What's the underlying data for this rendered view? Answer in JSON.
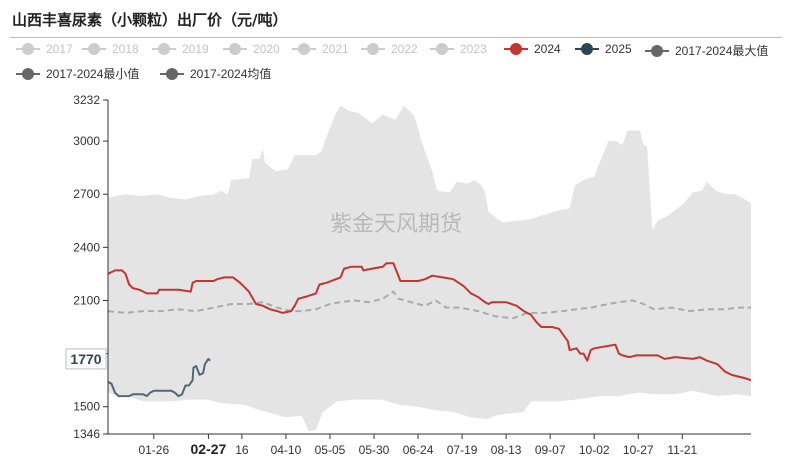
{
  "title": "山西丰喜尿素（小颗粒）出厂价（元/吨）",
  "watermark": "紫金天风期货",
  "legend": [
    {
      "label": "2017",
      "color": "#cccccc",
      "active": false
    },
    {
      "label": "2018",
      "color": "#cccccc",
      "active": false
    },
    {
      "label": "2019",
      "color": "#cccccc",
      "active": false
    },
    {
      "label": "2020",
      "color": "#cccccc",
      "active": false
    },
    {
      "label": "2021",
      "color": "#cccccc",
      "active": false
    },
    {
      "label": "2022",
      "color": "#cccccc",
      "active": false
    },
    {
      "label": "2023",
      "color": "#cccccc",
      "active": false
    },
    {
      "label": "2024",
      "color": "#c23531",
      "active": true
    },
    {
      "label": "2025",
      "color": "#2f4554",
      "active": true
    },
    {
      "label": "2017-2024最大值",
      "color": "#666666",
      "active": true
    },
    {
      "label": "2017-2024最小值",
      "color": "#666666",
      "active": true
    },
    {
      "label": "2017-2024均值",
      "color": "#666666",
      "active": true
    }
  ],
  "colors": {
    "band": "#e4e4e4",
    "y2024": "#c23531",
    "y2025": "#556677",
    "avg": "#aaaaaa",
    "axis": "#333333"
  },
  "chart_data": {
    "type": "line",
    "x_domain": [
      0,
      365
    ],
    "ylim": [
      1346,
      3232
    ],
    "y_ticks": [
      1346,
      1500,
      1800,
      2100,
      2400,
      2700,
      3000,
      3232
    ],
    "y_tick_labels": [
      "1346",
      "1500",
      "",
      "2100",
      "2400",
      "2700",
      "3000",
      "3232"
    ],
    "x_ticks": [
      {
        "day": 26,
        "label": "01-26",
        "bold": false
      },
      {
        "day": 57,
        "label": "02-27",
        "bold": true
      },
      {
        "day": 76,
        "label": "16",
        "bold": false
      },
      {
        "day": 101,
        "label": "04-10",
        "bold": false
      },
      {
        "day": 126,
        "label": "05-05",
        "bold": false
      },
      {
        "day": 151,
        "label": "05-30",
        "bold": false
      },
      {
        "day": 176,
        "label": "06-24",
        "bold": false
      },
      {
        "day": 201,
        "label": "07-19",
        "bold": false
      },
      {
        "day": 226,
        "label": "08-13",
        "bold": false
      },
      {
        "day": 251,
        "label": "09-07",
        "bold": false
      },
      {
        "day": 276,
        "label": "10-02",
        "bold": false
      },
      {
        "day": 301,
        "label": "10-27",
        "bold": false
      },
      {
        "day": 326,
        "label": "11-21",
        "bold": false
      }
    ],
    "pointer": {
      "day": 57,
      "value": 1770,
      "label": "1770"
    },
    "series": [
      {
        "name": "2017-2024最大值",
        "role": "band_max",
        "points": [
          [
            0,
            2680
          ],
          [
            10,
            2700
          ],
          [
            20,
            2690
          ],
          [
            28,
            2700
          ],
          [
            35,
            2680
          ],
          [
            44,
            2670
          ],
          [
            52,
            2690
          ],
          [
            60,
            2700
          ],
          [
            64,
            2720
          ],
          [
            68,
            2700
          ],
          [
            70,
            2780
          ],
          [
            80,
            2790
          ],
          [
            82,
            2900
          ],
          [
            86,
            2900
          ],
          [
            88,
            2960
          ],
          [
            89,
            2880
          ],
          [
            95,
            2830
          ],
          [
            102,
            2840
          ],
          [
            106,
            2920
          ],
          [
            118,
            2920
          ],
          [
            121,
            2940
          ],
          [
            125,
            3050
          ],
          [
            129,
            3150
          ],
          [
            132,
            3200
          ],
          [
            137,
            3170
          ],
          [
            142,
            3160
          ],
          [
            150,
            3100
          ],
          [
            156,
            3150
          ],
          [
            163,
            3120
          ],
          [
            168,
            3200
          ],
          [
            174,
            3140
          ],
          [
            178,
            3000
          ],
          [
            184,
            2830
          ],
          [
            187,
            2720
          ],
          [
            194,
            2710
          ],
          [
            198,
            2770
          ],
          [
            204,
            2760
          ],
          [
            208,
            2780
          ],
          [
            212,
            2750
          ],
          [
            214,
            2710
          ],
          [
            216,
            2600
          ],
          [
            224,
            2540
          ],
          [
            232,
            2550
          ],
          [
            240,
            2560
          ],
          [
            246,
            2580
          ],
          [
            256,
            2610
          ],
          [
            262,
            2620
          ],
          [
            265,
            2750
          ],
          [
            270,
            2780
          ],
          [
            276,
            2800
          ],
          [
            280,
            2900
          ],
          [
            284,
            3000
          ],
          [
            288,
            3000
          ],
          [
            292,
            2980
          ],
          [
            295,
            3060
          ],
          [
            302,
            3060
          ],
          [
            304,
            2980
          ],
          [
            306,
            2970
          ],
          [
            309,
            2500
          ],
          [
            312,
            2550
          ],
          [
            318,
            2580
          ],
          [
            326,
            2640
          ],
          [
            332,
            2710
          ],
          [
            337,
            2720
          ],
          [
            340,
            2770
          ],
          [
            345,
            2720
          ],
          [
            351,
            2700
          ],
          [
            356,
            2700
          ],
          [
            360,
            2680
          ],
          [
            365,
            2650
          ]
        ]
      },
      {
        "name": "2017-2024最小值",
        "role": "band_min",
        "points": [
          [
            0,
            1580
          ],
          [
            6,
            1560
          ],
          [
            12,
            1560
          ],
          [
            17,
            1540
          ],
          [
            21,
            1530
          ],
          [
            36,
            1530
          ],
          [
            46,
            1540
          ],
          [
            56,
            1540
          ],
          [
            65,
            1520
          ],
          [
            78,
            1510
          ],
          [
            86,
            1480
          ],
          [
            94,
            1460
          ],
          [
            100,
            1440
          ],
          [
            110,
            1450
          ],
          [
            114,
            1360
          ],
          [
            118,
            1370
          ],
          [
            122,
            1470
          ],
          [
            130,
            1530
          ],
          [
            140,
            1540
          ],
          [
            155,
            1540
          ],
          [
            166,
            1510
          ],
          [
            176,
            1500
          ],
          [
            186,
            1480
          ],
          [
            196,
            1470
          ],
          [
            206,
            1440
          ],
          [
            215,
            1430
          ],
          [
            220,
            1450
          ],
          [
            226,
            1460
          ],
          [
            236,
            1470
          ],
          [
            240,
            1530
          ],
          [
            256,
            1530
          ],
          [
            265,
            1540
          ],
          [
            279,
            1560
          ],
          [
            290,
            1560
          ],
          [
            301,
            1580
          ],
          [
            310,
            1570
          ],
          [
            322,
            1570
          ],
          [
            332,
            1590
          ],
          [
            346,
            1560
          ],
          [
            356,
            1570
          ],
          [
            365,
            1560
          ]
        ]
      },
      {
        "name": "2017-2024均值",
        "role": "avg",
        "points": [
          [
            0,
            2040
          ],
          [
            10,
            2030
          ],
          [
            20,
            2040
          ],
          [
            30,
            2040
          ],
          [
            40,
            2050
          ],
          [
            50,
            2040
          ],
          [
            60,
            2060
          ],
          [
            70,
            2080
          ],
          [
            80,
            2080
          ],
          [
            88,
            2090
          ],
          [
            96,
            2060
          ],
          [
            104,
            2040
          ],
          [
            110,
            2040
          ],
          [
            118,
            2050
          ],
          [
            126,
            2080
          ],
          [
            132,
            2090
          ],
          [
            140,
            2100
          ],
          [
            148,
            2090
          ],
          [
            156,
            2110
          ],
          [
            162,
            2150
          ],
          [
            165,
            2110
          ],
          [
            172,
            2090
          ],
          [
            180,
            2070
          ],
          [
            186,
            2100
          ],
          [
            192,
            2060
          ],
          [
            200,
            2060
          ],
          [
            210,
            2040
          ],
          [
            220,
            2010
          ],
          [
            230,
            2000
          ],
          [
            238,
            2030
          ],
          [
            248,
            2030
          ],
          [
            258,
            2040
          ],
          [
            266,
            2050
          ],
          [
            274,
            2060
          ],
          [
            284,
            2080
          ],
          [
            290,
            2090
          ],
          [
            298,
            2100
          ],
          [
            304,
            2080
          ],
          [
            310,
            2050
          ],
          [
            320,
            2060
          ],
          [
            330,
            2040
          ],
          [
            340,
            2050
          ],
          [
            350,
            2050
          ],
          [
            358,
            2060
          ],
          [
            365,
            2060
          ]
        ]
      },
      {
        "name": "2024",
        "role": "line",
        "points": [
          [
            0,
            2250
          ],
          [
            4,
            2270
          ],
          [
            8,
            2270
          ],
          [
            10,
            2250
          ],
          [
            12,
            2190
          ],
          [
            14,
            2170
          ],
          [
            18,
            2160
          ],
          [
            20,
            2150
          ],
          [
            22,
            2140
          ],
          [
            28,
            2140
          ],
          [
            29,
            2160
          ],
          [
            40,
            2160
          ],
          [
            47,
            2150
          ],
          [
            48,
            2200
          ],
          [
            50,
            2210
          ],
          [
            60,
            2210
          ],
          [
            62,
            2220
          ],
          [
            66,
            2230
          ],
          [
            71,
            2230
          ],
          [
            75,
            2200
          ],
          [
            80,
            2150
          ],
          [
            84,
            2080
          ],
          [
            88,
            2070
          ],
          [
            92,
            2050
          ],
          [
            96,
            2040
          ],
          [
            99,
            2030
          ],
          [
            104,
            2040
          ],
          [
            106,
            2070
          ],
          [
            108,
            2110
          ],
          [
            112,
            2120
          ],
          [
            118,
            2140
          ],
          [
            120,
            2190
          ],
          [
            124,
            2200
          ],
          [
            132,
            2230
          ],
          [
            134,
            2280
          ],
          [
            138,
            2290
          ],
          [
            144,
            2290
          ],
          [
            145,
            2270
          ],
          [
            150,
            2280
          ],
          [
            156,
            2290
          ],
          [
            158,
            2310
          ],
          [
            162,
            2310
          ],
          [
            166,
            2210
          ],
          [
            176,
            2210
          ],
          [
            180,
            2220
          ],
          [
            184,
            2240
          ],
          [
            190,
            2230
          ],
          [
            196,
            2220
          ],
          [
            202,
            2180
          ],
          [
            206,
            2140
          ],
          [
            210,
            2120
          ],
          [
            214,
            2090
          ],
          [
            216,
            2080
          ],
          [
            218,
            2090
          ],
          [
            226,
            2090
          ],
          [
            232,
            2070
          ],
          [
            236,
            2040
          ],
          [
            240,
            2020
          ],
          [
            243,
            1980
          ],
          [
            246,
            1950
          ],
          [
            252,
            1950
          ],
          [
            256,
            1940
          ],
          [
            261,
            1870
          ],
          [
            262,
            1820
          ],
          [
            266,
            1830
          ],
          [
            268,
            1800
          ],
          [
            270,
            1800
          ],
          [
            272,
            1760
          ],
          [
            274,
            1820
          ],
          [
            276,
            1830
          ],
          [
            282,
            1840
          ],
          [
            288,
            1850
          ],
          [
            290,
            1800
          ],
          [
            292,
            1790
          ],
          [
            296,
            1780
          ],
          [
            300,
            1790
          ],
          [
            312,
            1790
          ],
          [
            316,
            1770
          ],
          [
            322,
            1780
          ],
          [
            332,
            1770
          ],
          [
            336,
            1780
          ],
          [
            340,
            1760
          ],
          [
            346,
            1740
          ],
          [
            350,
            1700
          ],
          [
            354,
            1680
          ],
          [
            362,
            1660
          ],
          [
            365,
            1650
          ]
        ]
      },
      {
        "name": "2025",
        "role": "line",
        "points": [
          [
            0,
            1640
          ],
          [
            2,
            1630
          ],
          [
            4,
            1580
          ],
          [
            6,
            1560
          ],
          [
            12,
            1560
          ],
          [
            14,
            1570
          ],
          [
            20,
            1570
          ],
          [
            22,
            1560
          ],
          [
            24,
            1580
          ],
          [
            26,
            1590
          ],
          [
            36,
            1590
          ],
          [
            38,
            1580
          ],
          [
            40,
            1560
          ],
          [
            42,
            1570
          ],
          [
            44,
            1620
          ],
          [
            46,
            1620
          ],
          [
            48,
            1650
          ],
          [
            48.5,
            1720
          ],
          [
            50,
            1730
          ],
          [
            52,
            1680
          ],
          [
            54,
            1690
          ],
          [
            55,
            1740
          ],
          [
            57,
            1770
          ],
          [
            58,
            1760
          ]
        ]
      }
    ]
  }
}
